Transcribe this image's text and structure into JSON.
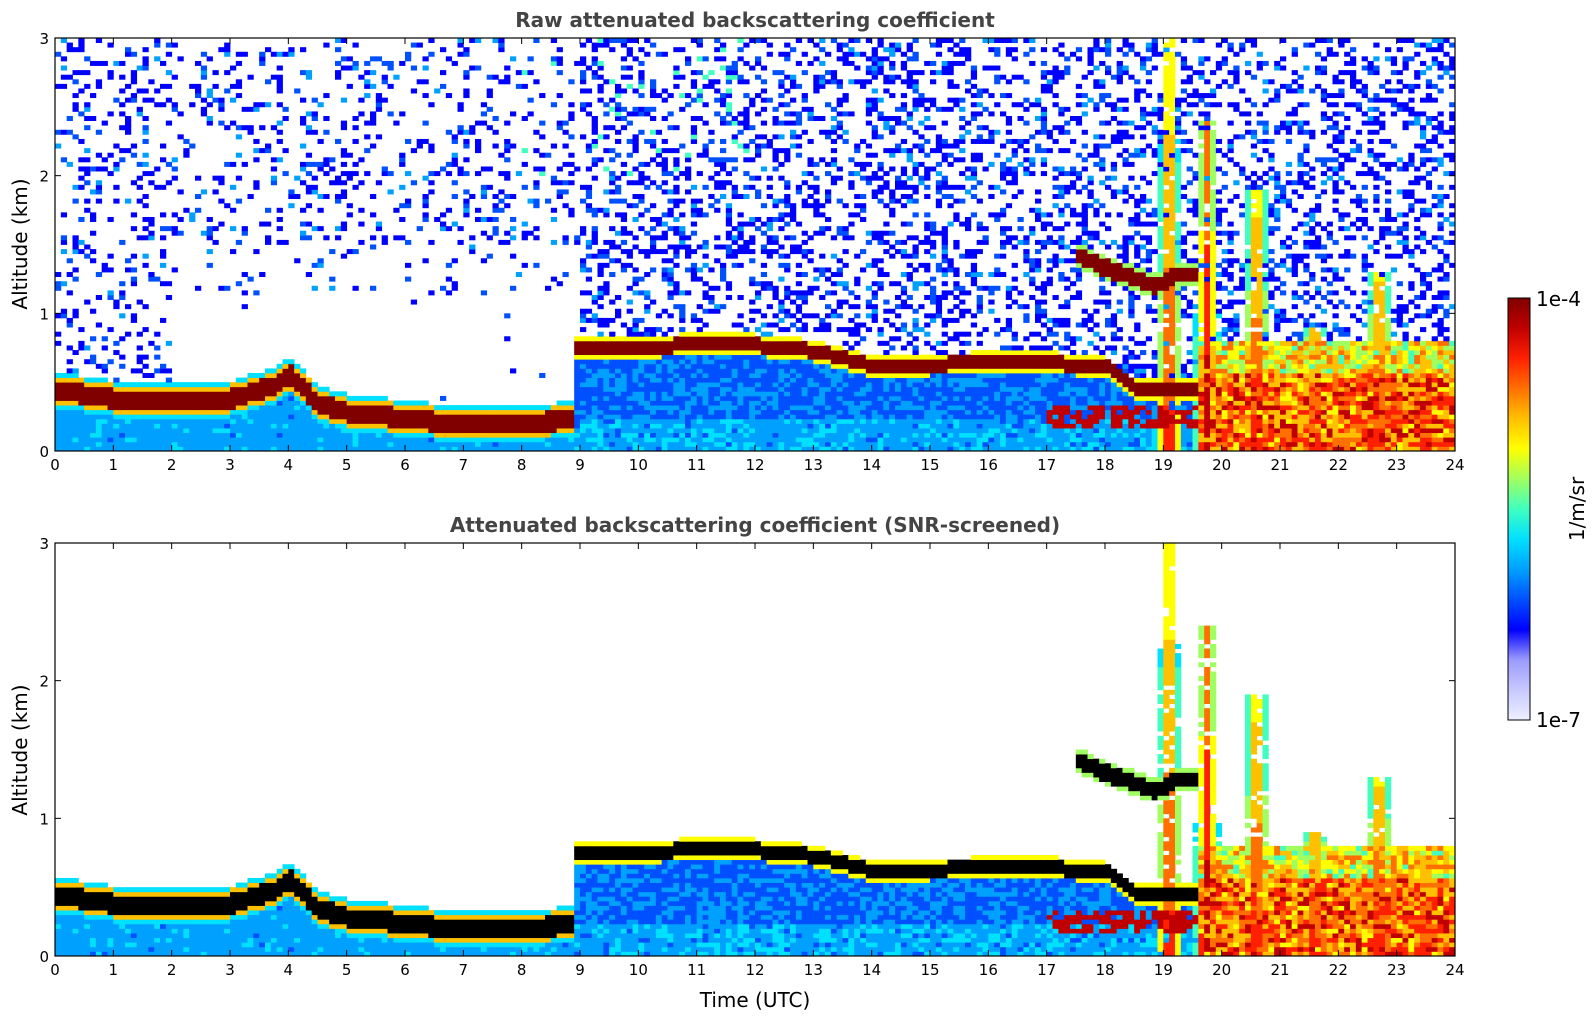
{
  "chart_data": [
    {
      "type": "heatmap",
      "title": "Raw attenuated backscattering coefficient",
      "xlabel": "",
      "ylabel": "Altitude (km)",
      "xlim": [
        0,
        24
      ],
      "ylim": [
        0,
        3
      ],
      "x_ticks": [
        "0",
        "1",
        "2",
        "3",
        "4",
        "5",
        "6",
        "7",
        "8",
        "9",
        "10",
        "11",
        "12",
        "13",
        "14",
        "15",
        "16",
        "17",
        "18",
        "19",
        "20",
        "21",
        "22",
        "23",
        "24"
      ],
      "y_ticks": [
        "0",
        "1",
        "2",
        "3"
      ],
      "screened": false,
      "layers": {
        "boundary_layer_top_km": [
          [
            0,
            0.45
          ],
          [
            1,
            0.38
          ],
          [
            2,
            0.36
          ],
          [
            3,
            0.38
          ],
          [
            3.8,
            0.48
          ],
          [
            4.05,
            0.55
          ],
          [
            4.5,
            0.35
          ],
          [
            5,
            0.28
          ],
          [
            6,
            0.24
          ],
          [
            7,
            0.19
          ],
          [
            8,
            0.2
          ],
          [
            8.9,
            0.23
          ]
        ],
        "elevated_layer_km": [
          [
            8.9,
            0.74
          ],
          [
            10,
            0.75
          ],
          [
            11,
            0.78
          ],
          [
            12,
            0.77
          ],
          [
            13,
            0.73
          ],
          [
            13.7,
            0.65
          ],
          [
            14,
            0.62
          ],
          [
            15,
            0.63
          ],
          [
            16,
            0.64
          ],
          [
            17,
            0.64
          ],
          [
            18,
            0.62
          ],
          [
            18.5,
            0.45
          ]
        ],
        "cloud_layer_km": [
          [
            17.5,
            1.42
          ],
          [
            18.2,
            1.3
          ],
          [
            18.9,
            1.2
          ],
          [
            19.2,
            1.28
          ],
          [
            19.6,
            1.28
          ]
        ],
        "convective_plumes": [
          {
            "x": 19.1,
            "top_km": 3.0
          },
          {
            "x": 19.75,
            "top_km": 2.4
          },
          {
            "x": 20.6,
            "top_km": 1.9
          },
          {
            "x": 21.6,
            "top_km": 0.9
          },
          {
            "x": 22.7,
            "top_km": 1.3
          },
          {
            "x": 23.5,
            "top_km": 0.7
          }
        ]
      }
    },
    {
      "type": "heatmap",
      "title": "Attenuated backscattering coefficient (SNR-screened)",
      "xlabel": "Time (UTC)",
      "ylabel": "Altitude (km)",
      "xlim": [
        0,
        24
      ],
      "ylim": [
        0,
        3
      ],
      "x_ticks": [
        "0",
        "1",
        "2",
        "3",
        "4",
        "5",
        "6",
        "7",
        "8",
        "9",
        "10",
        "11",
        "12",
        "13",
        "14",
        "15",
        "16",
        "17",
        "18",
        "19",
        "20",
        "21",
        "22",
        "23",
        "24"
      ],
      "y_ticks": [
        "0",
        "1",
        "2",
        "3"
      ],
      "screened": true
    }
  ],
  "colorbar": {
    "label": "1/m/sr",
    "max_label": "1e-4",
    "min_label": "1e-7",
    "scale": "log",
    "range": [
      1e-07,
      0.0001
    ],
    "colors": [
      "#eef0ff",
      "#c8c8ff",
      "#9a9aff",
      "#0000ff",
      "#0050ff",
      "#00a0ff",
      "#00e0ff",
      "#40ffc0",
      "#a0ff60",
      "#ffff00",
      "#ffc000",
      "#ff7000",
      "#ff2000",
      "#c00000",
      "#800000"
    ]
  }
}
